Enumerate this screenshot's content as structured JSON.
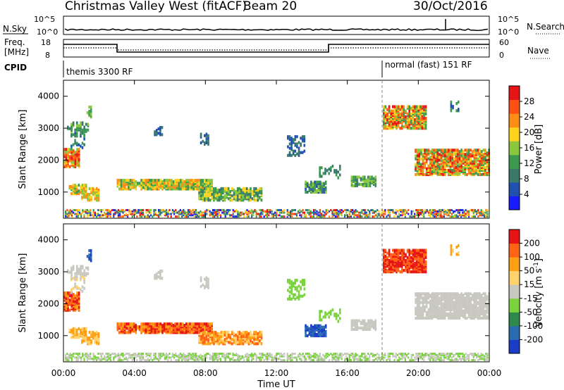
{
  "header": {
    "station": "Christmas Valley West (fitACF)",
    "beam": "Beam 20",
    "date": "30/Oct/2016"
  },
  "top_panels": {
    "nsky_label": "N.Sky",
    "nsearch_label": "N.Search",
    "freq_label_1": "Freq.",
    "freq_label_2": "[MHz]",
    "nave_label": "Nave",
    "cpid_label": "CPID",
    "nsky_ticks": [
      "10^5",
      "10^0"
    ],
    "nsearch_ticks": [
      "10^5",
      "10^0"
    ],
    "freq_ticks": [
      "18",
      "8"
    ],
    "nave_ticks": [
      "60",
      "0"
    ],
    "cpid_left": "themis 3300 RF",
    "cpid_right": "normal (fast) 151 RF"
  },
  "colors": {
    "power_scale": [
      "#1a1aff",
      "#2050b0",
      "#3a7a6a",
      "#3c9a50",
      "#8cc83c",
      "#ffd21e",
      "#ff8c14",
      "#ff5014",
      "#e61414"
    ],
    "velocity_scale": [
      "#1a3cc8",
      "#2a6ab0",
      "#2e8a4a",
      "#7ad23c",
      "#c8c8c0",
      "#ffd26e",
      "#ffa014",
      "#ff6414",
      "#e61414"
    ]
  },
  "chart_data": [
    {
      "type": "heatmap",
      "title": "Power",
      "ylabel": "Slant Range [km]",
      "ylim": [
        180,
        4500
      ],
      "yticks": [
        "1000",
        "2000",
        "3000",
        "4000"
      ],
      "colorbar_label": "Power [dB]",
      "colorbar_ticks": [
        "4",
        "8",
        "12",
        "16",
        "20",
        "24",
        "28"
      ],
      "xlim": [
        "00:00",
        "24:00"
      ],
      "xticks": [
        "00:00",
        "04:00",
        "08:00",
        "12:00",
        "16:00",
        "20:00",
        "00:00"
      ]
    },
    {
      "type": "heatmap",
      "title": "Velocity",
      "ylabel": "Slant Range [km]",
      "ylim": [
        180,
        4500
      ],
      "yticks": [
        "1000",
        "2000",
        "3000",
        "4000"
      ],
      "colorbar_label": "Velocity [m s^-1]",
      "colorbar_ticks": [
        "200",
        "100",
        "50",
        "15",
        "-15",
        "-50",
        "-100",
        "-200"
      ],
      "xlabel": "Time UT",
      "xticks": [
        "00:00",
        "04:00",
        "08:00",
        "12:00",
        "16:00",
        "20:00",
        "00:00"
      ]
    }
  ]
}
